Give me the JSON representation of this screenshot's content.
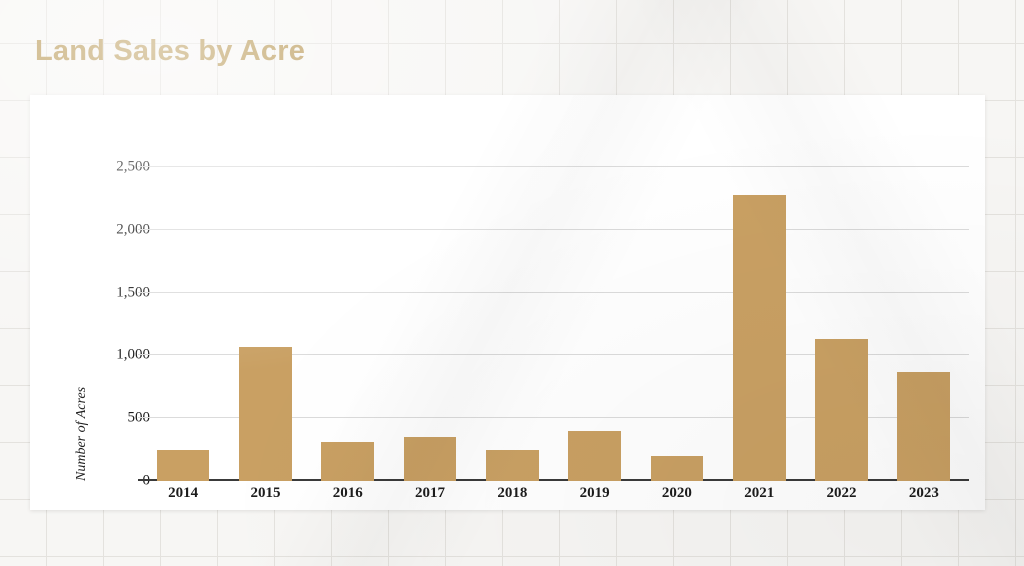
{
  "page": {
    "title": "Land Sales by Acre"
  },
  "colors": {
    "title": "#b5934c",
    "bar": "#c9a063",
    "gridline": "#dbdbdb",
    "axis_baseline": "#3a3a3a"
  },
  "chart_data": {
    "type": "bar",
    "title": "Land Sales by Acre",
    "xlabel": "",
    "ylabel": "Number of Acres",
    "categories": [
      "2014",
      "2015",
      "2016",
      "2017",
      "2018",
      "2019",
      "2020",
      "2021",
      "2022",
      "2023"
    ],
    "values": [
      250,
      1070,
      310,
      350,
      250,
      400,
      200,
      2280,
      1130,
      870
    ],
    "ylim": [
      0,
      2500
    ],
    "yticks": [
      0,
      500,
      1000,
      1500,
      2000,
      2500
    ],
    "ytick_labels": [
      "0",
      "500",
      "1,000",
      "1,500",
      "2,000",
      "2,500"
    ],
    "bar_color": "#c9a063",
    "grid": true,
    "legend": "none"
  }
}
